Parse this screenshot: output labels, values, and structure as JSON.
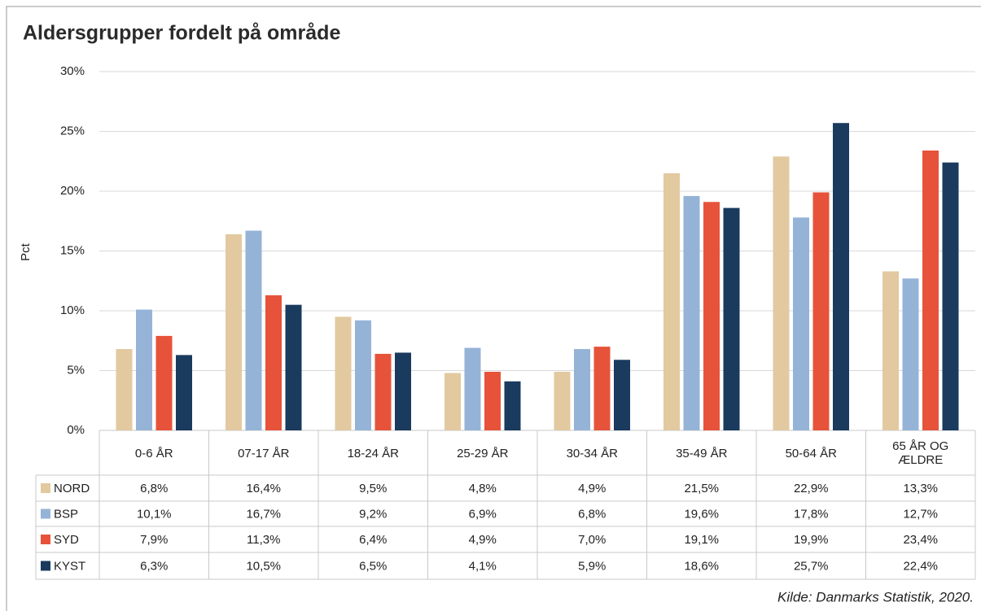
{
  "chart_data": {
    "type": "bar",
    "title": "Aldersgrupper fordelt på område",
    "y_label": "Pct",
    "source": "Kilde: Danmarks Statistik, 2020.",
    "categories": [
      "0-6 ÅR",
      "07-17 ÅR",
      "18-24 ÅR",
      "25-29 ÅR",
      "30-34 ÅR",
      "35-49 ÅR",
      "50-64 ÅR",
      "65 ÅR OG ÆLDRE"
    ],
    "series": [
      {
        "name": "NORD",
        "color": "#e2c9a0",
        "values": [
          6.8,
          16.4,
          9.5,
          4.8,
          4.9,
          21.5,
          22.9,
          13.3
        ],
        "value_labels": [
          "6,8%",
          "16,4%",
          "9,5%",
          "4,8%",
          "4,9%",
          "21,5%",
          "22,9%",
          "13,3%"
        ]
      },
      {
        "name": "BSP",
        "color": "#95b3d7",
        "values": [
          10.1,
          16.7,
          9.2,
          6.9,
          6.8,
          19.6,
          17.8,
          12.7
        ],
        "value_labels": [
          "10,1%",
          "16,7%",
          "9,2%",
          "6,9%",
          "6,8%",
          "19,6%",
          "17,8%",
          "12,7%"
        ]
      },
      {
        "name": "SYD",
        "color": "#e6533a",
        "values": [
          7.9,
          11.3,
          6.4,
          4.9,
          7.0,
          19.1,
          19.9,
          23.4
        ],
        "value_labels": [
          "7,9%",
          "11,3%",
          "6,4%",
          "4,9%",
          "7,0%",
          "19,1%",
          "19,9%",
          "23,4%"
        ]
      },
      {
        "name": "KYST",
        "color": "#1a3a5e",
        "values": [
          6.3,
          10.5,
          6.5,
          4.1,
          5.9,
          18.6,
          25.7,
          22.4
        ],
        "value_labels": [
          "6,3%",
          "10,5%",
          "6,5%",
          "4,1%",
          "5,9%",
          "18,6%",
          "25,7%",
          "22,4%"
        ]
      }
    ],
    "ylim": [
      0,
      30
    ],
    "yticks": [
      {
        "value": 0,
        "label": "0%"
      },
      {
        "value": 5,
        "label": "5%"
      },
      {
        "value": 10,
        "label": "10%"
      },
      {
        "value": 15,
        "label": "15%"
      },
      {
        "value": 20,
        "label": "20%"
      },
      {
        "value": 25,
        "label": "25%"
      },
      {
        "value": 30,
        "label": "30%"
      }
    ],
    "grid": true
  }
}
